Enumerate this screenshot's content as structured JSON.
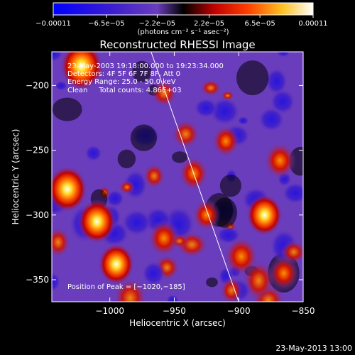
{
  "chart_data": {
    "type": "heatmap",
    "title": "Reconstructed RHESSI Image",
    "xlabel": "Heliocentric X (arcsec)",
    "ylabel": "Heliocentric Y (arcsec)",
    "xlim": [
      -1045,
      -850
    ],
    "ylim": [
      -367,
      -174
    ],
    "x_ticks": [
      -1000,
      -950,
      -900,
      -850
    ],
    "x_tick_labels": [
      "−1000",
      "−950",
      "−900",
      "−850"
    ],
    "y_ticks": [
      -200,
      -250,
      -300,
      -350
    ],
    "y_tick_labels": [
      "−200",
      "−250",
      "−300",
      "−350"
    ],
    "colorbar": {
      "ticks": [
        -0.00011,
        -6.5e-05,
        -2.2e-05,
        2.2e-05,
        6.5e-05,
        0.00011
      ],
      "tick_labels": [
        "−0.00011",
        "−6.5e−05",
        "−2.2e−05",
        "2.2e−05",
        "6.5e−05",
        "0.00011"
      ],
      "units_label": "(photons cm⁻² s⁻¹ asec⁻²)",
      "range": [
        -0.00011,
        0.00011
      ]
    },
    "annotations": [
      "23-May-2003 19:18:00.000 to 19:23:34.000",
      "Detectors: 4F 5F 6F 7F 8F, Att 0",
      "Energy Range: 25.0 - 50.0 keV",
      "Clean     Total counts: 4.86E+03"
    ],
    "peak_label": "Position of Peak = [−1020,−185]",
    "peak_position": [
      -1020,
      -185
    ],
    "limb_line": [
      [
        -968,
        -174
      ],
      [
        -900,
        -367
      ]
    ],
    "bright_sources": [
      {
        "x": -1022,
        "y": -185,
        "value": 0.00011
      },
      {
        "x": -1033,
        "y": -280,
        "value": 0.0001
      },
      {
        "x": -1010,
        "y": -305,
        "value": 9e-05
      },
      {
        "x": -995,
        "y": -338,
        "value": 8e-05
      },
      {
        "x": -898,
        "y": -332,
        "value": 7e-05
      },
      {
        "x": -880,
        "y": -300,
        "value": 8e-05
      },
      {
        "x": -868,
        "y": -258,
        "value": 6e-05
      },
      {
        "x": -958,
        "y": -318,
        "value": 6e-05
      },
      {
        "x": -935,
        "y": -268,
        "value": 5e-05
      },
      {
        "x": -910,
        "y": -243,
        "value": 4e-05
      },
      {
        "x": -925,
        "y": -300,
        "value": 4e-05
      },
      {
        "x": -865,
        "y": -345,
        "value": 5e-05
      }
    ],
    "colors": {
      "low": "#0000ff",
      "mid_low": "#6a3dbd",
      "mid": "#000000",
      "high": "#ff3000",
      "peak": "#ffffff"
    }
  },
  "footer_date": "23-May-2013 13:00"
}
